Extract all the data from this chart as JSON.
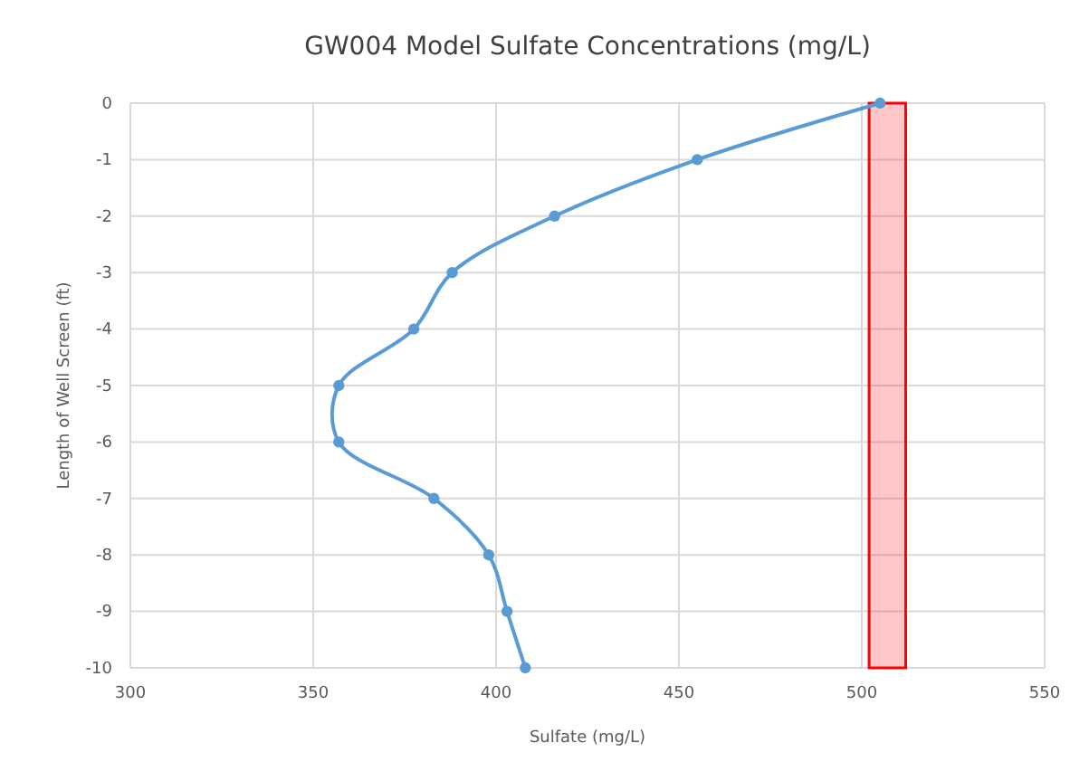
{
  "chart_data": {
    "type": "line",
    "title": "GW004 Model Sulfate Concentrations (mg/L)",
    "xlabel": "Sulfate (mg/L)",
    "ylabel": "Length of Well Screen (ft)",
    "series": [
      {
        "color": "#5b9bd5",
        "x": [
          505,
          455,
          416,
          388,
          377.5,
          357,
          357,
          383,
          398,
          403,
          408
        ],
        "values": [
          0,
          -1,
          -2,
          -3,
          -4,
          -5,
          -6,
          -7,
          -8,
          -9,
          -10
        ]
      }
    ],
    "xlim": [
      300,
      550
    ],
    "xticks": [
      300,
      350,
      400,
      450,
      500,
      550
    ],
    "ylim": [
      -10,
      0
    ],
    "yticks": [
      0,
      -1,
      -2,
      -3,
      -4,
      -5,
      -6,
      -7,
      -8,
      -9,
      -10
    ],
    "bands": [
      {
        "axis": "x",
        "from": 502,
        "to": 512,
        "color": "#ff0000"
      }
    ],
    "grid": true,
    "marker": "circle",
    "line_style": "solid"
  }
}
